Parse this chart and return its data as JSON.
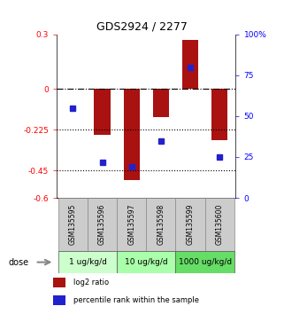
{
  "title": "GDS2924 / 2277",
  "samples": [
    "GSM135595",
    "GSM135596",
    "GSM135597",
    "GSM135598",
    "GSM135599",
    "GSM135600"
  ],
  "log2_ratio": [
    0.0,
    -0.255,
    -0.5,
    -0.155,
    0.272,
    -0.28
  ],
  "percentile_rank": [
    55,
    22,
    19,
    35,
    80,
    25
  ],
  "ylim_left": [
    -0.6,
    0.3
  ],
  "ylim_right": [
    0,
    100
  ],
  "hline_zero": 0.0,
  "hlines_dotted": [
    -0.225,
    -0.45
  ],
  "bar_color": "#aa1111",
  "dot_color": "#2222cc",
  "dose_groups": [
    {
      "label": "1 ug/kg/d",
      "samples": [
        0,
        1
      ],
      "color": "#ccffcc"
    },
    {
      "label": "10 ug/kg/d",
      "samples": [
        2,
        3
      ],
      "color": "#aaffaa"
    },
    {
      "label": "1000 ug/kg/d",
      "samples": [
        4,
        5
      ],
      "color": "#66dd66"
    }
  ],
  "legend_items": [
    {
      "label": "log2 ratio",
      "color": "#aa1111"
    },
    {
      "label": "percentile rank within the sample",
      "color": "#2222cc"
    }
  ],
  "yticks_left": [
    0.3,
    0.0,
    -0.225,
    -0.45,
    -0.6
  ],
  "ytick_left_labels": [
    "0.3",
    "0",
    "-0.225",
    "-0.45",
    "-0.6"
  ],
  "yticks_right": [
    100,
    75,
    50,
    25,
    0
  ],
  "ytick_right_labels": [
    "100%",
    "75",
    "50",
    "25",
    "0"
  ],
  "bar_width": 0.55,
  "sample_box_color": "#cccccc",
  "dose_label_fontsize": 7,
  "title_fontsize": 9
}
